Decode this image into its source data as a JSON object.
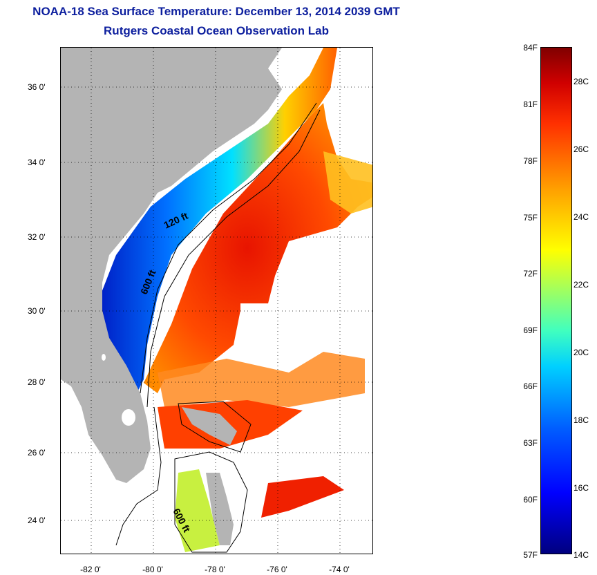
{
  "header": {
    "title": "NOAA-18 Sea Surface Temperature:  December 13, 2014 2039 GMT",
    "subtitle": "Rutgers Coastal Ocean Observation Lab"
  },
  "map": {
    "lat_labels": [
      "36 0'",
      "34 0'",
      "32 0'",
      "30 0'",
      "28 0'",
      "26 0'",
      "24 0'"
    ],
    "lon_labels": [
      "-82 0'",
      "-80 0'",
      "-78 0'",
      "-76 0'",
      "-74 0'"
    ],
    "contour_labels": {
      "c120_north": "120 ft",
      "c600_north": "600 ft",
      "c600_south": "600 ft"
    },
    "colors": {
      "land": "#b4b4b4",
      "no_data": "#ffffff",
      "warm": "#ff3a00",
      "cold": "#0000c8"
    }
  },
  "colorbar": {
    "fahrenheit": [
      "84F",
      "81F",
      "78F",
      "75F",
      "72F",
      "69F",
      "66F",
      "63F",
      "60F",
      "57F"
    ],
    "celsius": [
      "28C",
      "26C",
      "24C",
      "22C",
      "20C",
      "18C",
      "16C",
      "14C"
    ]
  }
}
